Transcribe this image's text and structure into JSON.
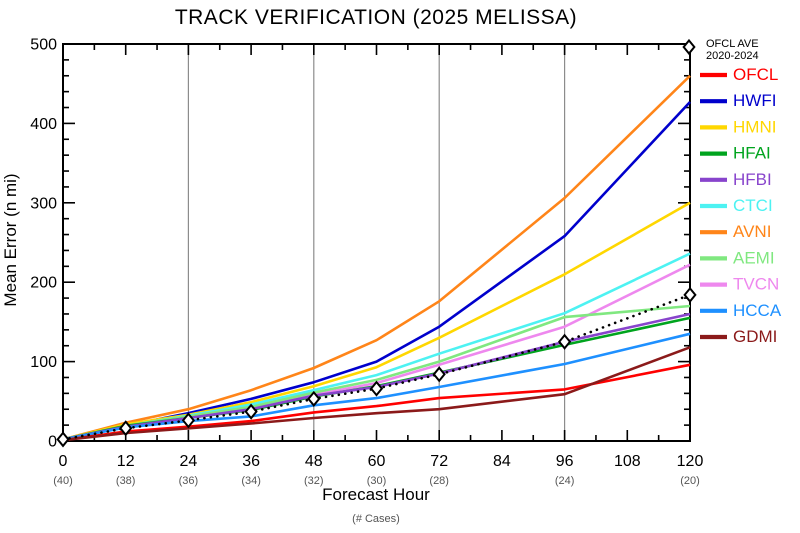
{
  "title": "TRACK VERIFICATION (2025 MELISSA)",
  "background": "#ffffff",
  "axes": {
    "y_label": "Mean Error (n mi)",
    "x_label": "Forecast Hour",
    "x_sublabel": "(# Cases)",
    "y_ticks": [
      0,
      100,
      200,
      300,
      400,
      500
    ],
    "x_ticks": [
      0,
      12,
      24,
      36,
      48,
      60,
      72,
      84,
      96,
      108,
      120
    ],
    "gridlines_x": [
      24,
      48,
      72,
      96
    ],
    "frame_color": "#000000",
    "grid_color": "#8c8c8c"
  },
  "cases": [
    {
      "hour": 0,
      "label": "(40)"
    },
    {
      "hour": 12,
      "label": "(38)"
    },
    {
      "hour": 24,
      "label": "(36)"
    },
    {
      "hour": 36,
      "label": "(34)"
    },
    {
      "hour": 48,
      "label": "(32)"
    },
    {
      "hour": 60,
      "label": "(30)"
    },
    {
      "hour": 72,
      "label": "(28)"
    },
    {
      "hour": 96,
      "label": "(24)"
    },
    {
      "hour": 120,
      "label": "(20)"
    }
  ],
  "legend": {
    "ave_marker": "diamond",
    "ave_line1": "OFCL AVE",
    "ave_line2": "2020-2024",
    "items": [
      "OFCL",
      "HWFI",
      "HMNI",
      "HFAI",
      "HFBI",
      "CTCI",
      "AVNI",
      "AEMI",
      "TVCN",
      "HCCA",
      "GDMI"
    ]
  },
  "chart_data": {
    "type": "line",
    "title": "TRACK VERIFICATION (2025 MELISSA)",
    "xlabel": "Forecast Hour",
    "ylabel": "Mean Error (n mi)",
    "xlim": [
      0,
      120
    ],
    "ylim": [
      0,
      500
    ],
    "grid": "vertical at 24/48/72/96",
    "legend_position": "right",
    "x": [
      0,
      12,
      24,
      36,
      48,
      60,
      72,
      96,
      120
    ],
    "case_counts": [
      40,
      38,
      36,
      34,
      32,
      30,
      28,
      24,
      20
    ],
    "series": [
      {
        "name": "OFCL",
        "color": "#ff0000",
        "style": "solid",
        "values": [
          1,
          12,
          18,
          25,
          36,
          44,
          54,
          65,
          96
        ]
      },
      {
        "name": "HWFI",
        "color": "#0000cc",
        "style": "solid",
        "values": [
          2,
          19,
          35,
          53,
          74,
          100,
          144,
          258,
          427
        ]
      },
      {
        "name": "HMNI",
        "color": "#ffd700",
        "style": "solid",
        "values": [
          2,
          21,
          33,
          49,
          69,
          93,
          130,
          210,
          300
        ]
      },
      {
        "name": "HFAI",
        "color": "#00a41e",
        "style": "solid",
        "values": [
          2,
          19,
          29,
          39,
          56,
          69,
          86,
          121,
          155
        ]
      },
      {
        "name": "HFBI",
        "color": "#8844cc",
        "style": "solid",
        "values": [
          2,
          18,
          29,
          40,
          57,
          68,
          85,
          125,
          160
        ]
      },
      {
        "name": "CTCI",
        "color": "#4df2f2",
        "style": "solid",
        "values": [
          2,
          19,
          32,
          46,
          64,
          83,
          110,
          161,
          236
        ]
      },
      {
        "name": "AVNI",
        "color": "#ff8519",
        "style": "solid",
        "values": [
          2,
          23,
          40,
          64,
          92,
          127,
          176,
          306,
          460
        ]
      },
      {
        "name": "AEMI",
        "color": "#80e880",
        "style": "solid",
        "values": [
          2,
          19,
          31,
          43,
          61,
          77,
          100,
          156,
          170
        ]
      },
      {
        "name": "TVCN",
        "color": "#ee88ee",
        "style": "solid",
        "values": [
          2,
          18,
          30,
          41,
          58,
          73,
          96,
          144,
          222
        ]
      },
      {
        "name": "HCCA",
        "color": "#1e90ff",
        "style": "solid",
        "values": [
          2,
          17,
          25,
          31,
          45,
          54,
          68,
          97,
          135
        ]
      },
      {
        "name": "GDMI",
        "color": "#8b1a1a",
        "style": "solid",
        "values": [
          1,
          10,
          16,
          22,
          29,
          35,
          40,
          59,
          118
        ]
      },
      {
        "name": "OFCL AVE 2020-2024",
        "color": "#000000",
        "style": "dotted",
        "marker": "diamond",
        "values": [
          2,
          16,
          26,
          37,
          53,
          66,
          84,
          125,
          184
        ]
      }
    ]
  }
}
